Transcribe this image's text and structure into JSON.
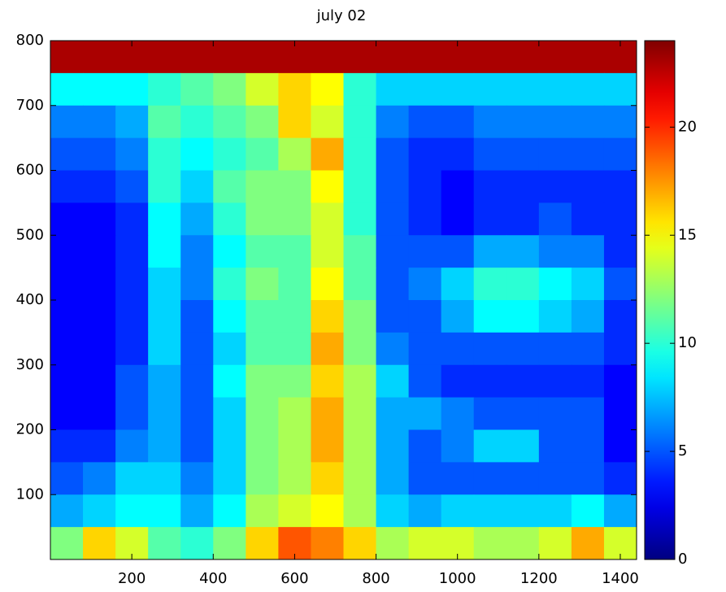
{
  "chart_data": {
    "type": "heatmap",
    "title": "july 02",
    "x": [
      40,
      120,
      200,
      280,
      360,
      440,
      520,
      600,
      680,
      760,
      840,
      920,
      1000,
      1080,
      1160,
      1240,
      1320,
      1400
    ],
    "y": [
      775,
      725,
      675,
      625,
      575,
      525,
      475,
      425,
      375,
      325,
      275,
      225,
      175,
      125,
      75,
      25
    ],
    "values": [
      [
        23,
        23,
        23,
        23,
        23,
        23,
        23,
        23,
        23,
        23,
        23,
        23,
        23,
        23,
        23,
        23,
        23,
        23
      ],
      [
        9,
        9,
        9,
        10,
        11,
        12,
        14,
        16,
        15,
        10,
        8,
        8,
        8,
        8,
        8,
        8,
        8,
        8
      ],
      [
        6,
        6,
        7,
        11,
        10,
        11,
        12,
        16,
        14,
        10,
        6,
        5,
        5,
        6,
        6,
        6,
        6,
        6
      ],
      [
        5,
        5,
        6,
        10,
        9,
        10,
        11,
        13,
        17,
        10,
        5,
        4,
        4,
        5,
        5,
        5,
        5,
        5
      ],
      [
        4,
        4,
        5,
        10,
        8,
        11,
        12,
        12,
        15,
        10,
        5,
        4,
        3,
        4,
        4,
        4,
        4,
        4
      ],
      [
        3,
        3,
        4,
        9,
        7,
        10,
        12,
        12,
        14,
        10,
        5,
        4,
        3,
        4,
        4,
        5,
        4,
        4
      ],
      [
        3,
        3,
        4,
        9,
        6,
        9,
        11,
        11,
        14,
        11,
        5,
        5,
        5,
        7,
        7,
        6,
        6,
        4
      ],
      [
        3,
        3,
        4,
        8,
        6,
        10,
        12,
        11,
        15,
        11,
        5,
        6,
        8,
        10,
        10,
        9,
        8,
        5
      ],
      [
        3,
        3,
        4,
        8,
        5,
        9,
        11,
        11,
        16,
        12,
        5,
        5,
        7,
        9,
        9,
        8,
        7,
        4
      ],
      [
        3,
        3,
        4,
        8,
        5,
        8,
        11,
        11,
        17,
        12,
        6,
        5,
        5,
        5,
        5,
        5,
        5,
        4
      ],
      [
        3,
        3,
        5,
        7,
        5,
        9,
        12,
        12,
        16,
        13,
        8,
        5,
        4,
        4,
        4,
        4,
        4,
        3
      ],
      [
        3,
        3,
        5,
        7,
        5,
        8,
        12,
        13,
        17,
        13,
        7,
        7,
        6,
        5,
        5,
        5,
        5,
        3
      ],
      [
        4,
        4,
        6,
        7,
        5,
        8,
        12,
        13,
        17,
        13,
        7,
        5,
        6,
        8,
        8,
        5,
        5,
        3
      ],
      [
        5,
        6,
        8,
        8,
        6,
        8,
        12,
        13,
        16,
        13,
        7,
        5,
        5,
        5,
        5,
        5,
        5,
        4
      ],
      [
        7,
        8,
        9,
        9,
        7,
        9,
        13,
        14,
        15,
        13,
        8,
        7,
        8,
        8,
        8,
        8,
        9,
        7
      ],
      [
        12,
        16,
        14,
        11,
        10,
        12,
        16,
        19,
        18,
        16,
        13,
        14,
        14,
        13,
        13,
        14,
        17,
        14
      ]
    ],
    "cell_width": 80,
    "cell_height": 50,
    "xlim": [
      0,
      1440
    ],
    "ylim": [
      0,
      800
    ],
    "xticks": [
      200,
      400,
      600,
      800,
      1000,
      1200,
      1400
    ],
    "yticks": [
      100,
      200,
      300,
      400,
      500,
      600,
      700,
      800
    ],
    "clim": [
      0,
      24
    ],
    "cticks": [
      0,
      5,
      10,
      15,
      20
    ],
    "colormap": "jet"
  }
}
